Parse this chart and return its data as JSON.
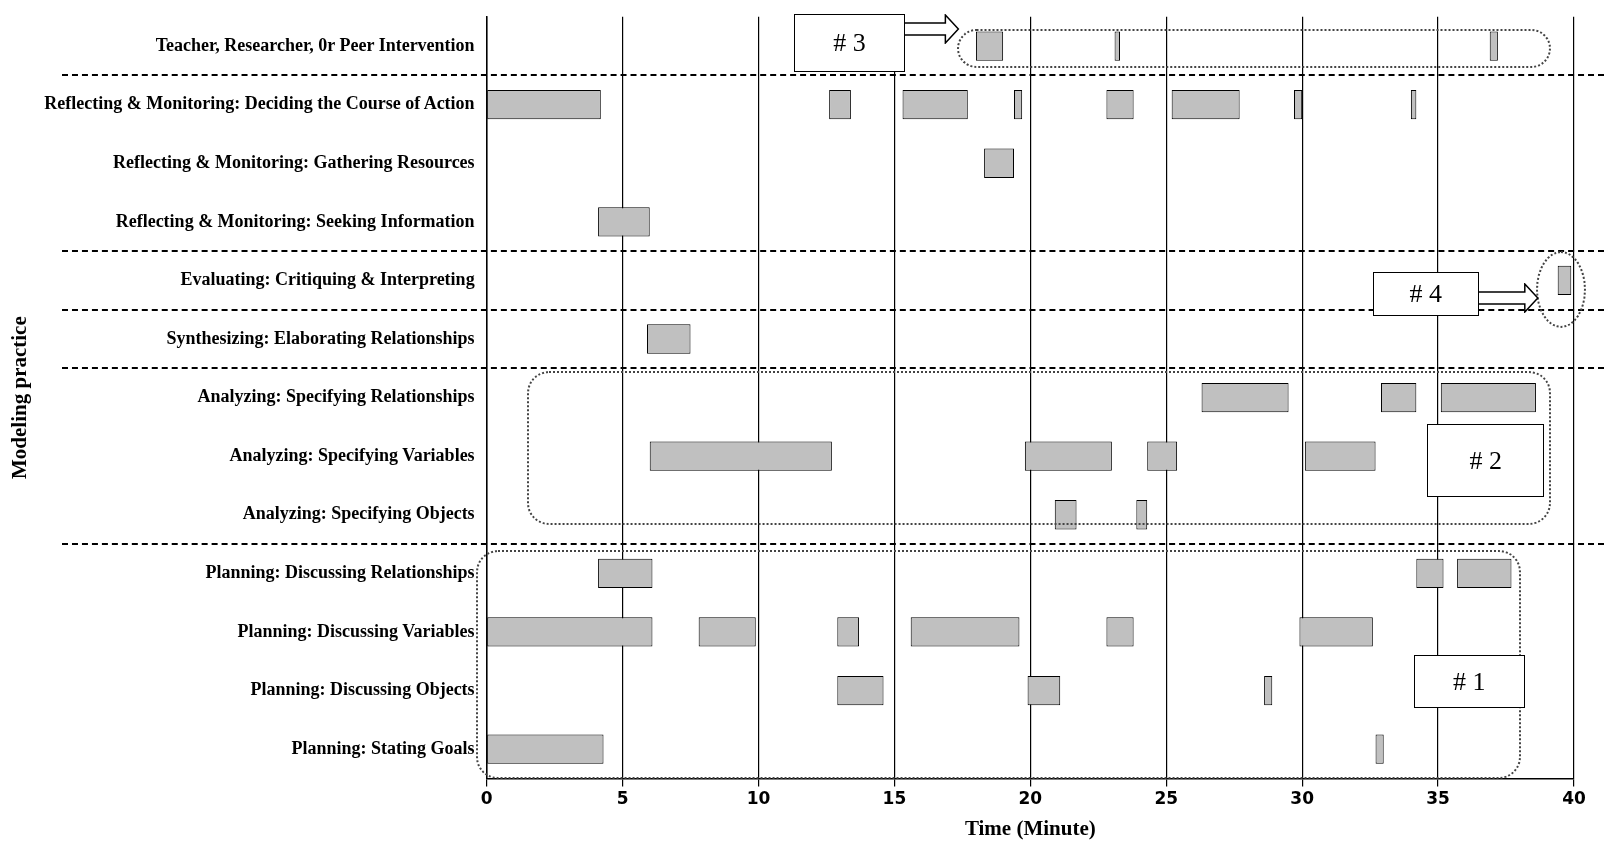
{
  "chart_data": {
    "type": "bar",
    "orientation": "horizontal",
    "xlabel": "Time (Minute)",
    "ylabel": "Modeling practice",
    "categories": [
      "Teacher, Researcher, 0r Peer Intervention",
      "Reflecting & Monitoring: Deciding the Course of Action",
      "Reflecting & Monitoring: Gathering Resources",
      "Reflecting & Monitoring: Seeking Information",
      "Evaluating: Critiquing & Interpreting",
      "Synthesizing: Elaborating Relationships",
      "Analyzing: Specifying Relationships",
      "Analyzing: Specifying Variables",
      "Analyzing: Specifying Objects",
      "Planning: Discussing Relationships",
      "Planning: Discussing Variables",
      "Planning: Discussing Objects",
      "Planning: Stating Goals"
    ],
    "series": [
      {
        "color": "#c0c0c0",
        "base": [
          18.0,
          0,
          18.3,
          4.1,
          39.4,
          5.9,
          26.3,
          6.0,
          20.9,
          4.1,
          0,
          12.9,
          0
        ],
        "values": [
          1.0,
          4.2,
          1.1,
          1.9,
          0.5,
          1.6,
          3.2,
          6.7,
          0.8,
          2.0,
          6.1,
          1.7,
          4.3
        ]
      },
      {
        "color": "#c0c0c0",
        "base": [
          23.1,
          12.6,
          null,
          null,
          null,
          null,
          32.9,
          19.8,
          23.9,
          34.2,
          7.8,
          19.9,
          32.7
        ],
        "values": [
          0.2,
          0.8,
          null,
          null,
          null,
          null,
          1.3,
          3.2,
          0.4,
          1.0,
          2.1,
          1.2,
          0.3
        ]
      },
      {
        "color": "#c0c0c0",
        "base": [
          36.9,
          15.3,
          null,
          null,
          null,
          null,
          35.1,
          24.3,
          null,
          35.7,
          12.9,
          28.6,
          null
        ],
        "values": [
          0.3,
          2.4,
          null,
          null,
          null,
          null,
          3.5,
          1.1,
          null,
          2.0,
          0.8,
          0.3,
          null
        ]
      },
      {
        "color": "#c0c0c0",
        "base": [
          null,
          19.4,
          null,
          null,
          null,
          null,
          null,
          30.1,
          null,
          null,
          15.6,
          null,
          null
        ],
        "values": [
          null,
          0.3,
          null,
          null,
          null,
          null,
          null,
          2.6,
          null,
          null,
          4.0,
          null,
          null
        ]
      },
      {
        "color": "#c0c0c0",
        "base": [
          null,
          22.8,
          null,
          null,
          null,
          null,
          null,
          null,
          null,
          null,
          22.8,
          null,
          null
        ],
        "values": [
          null,
          1.0,
          null,
          null,
          null,
          null,
          null,
          null,
          null,
          null,
          1.0,
          null,
          null
        ]
      },
      {
        "color": "#c0c0c0",
        "base": [
          null,
          25.2,
          null,
          null,
          null,
          null,
          null,
          null,
          null,
          null,
          29.9,
          null,
          null
        ],
        "values": [
          null,
          2.5,
          null,
          null,
          null,
          null,
          null,
          null,
          null,
          null,
          2.7,
          null,
          null
        ]
      },
      {
        "color": "#c0c0c0",
        "base": [
          null,
          29.7,
          null,
          null,
          null,
          null,
          null,
          null,
          null,
          null,
          null,
          null,
          null
        ],
        "values": [
          null,
          0.3,
          null,
          null,
          null,
          null,
          null,
          null,
          null,
          null,
          null,
          null,
          null
        ]
      },
      {
        "color": "#c0c0c0",
        "base": [
          null,
          34.0,
          null,
          null,
          null,
          null,
          null,
          null,
          null,
          null,
          null,
          null,
          null
        ],
        "values": [
          null,
          0.2,
          null,
          null,
          null,
          null,
          null,
          null,
          null,
          null,
          null,
          null,
          null
        ]
      }
    ],
    "xlim": [
      0,
      40
    ],
    "xticks": [
      0,
      5,
      10,
      15,
      20,
      25,
      30,
      35,
      40
    ],
    "grid": "x",
    "legend": false,
    "annotations": [
      "# 1",
      "# 2",
      "# 3",
      "# 4"
    ]
  }
}
